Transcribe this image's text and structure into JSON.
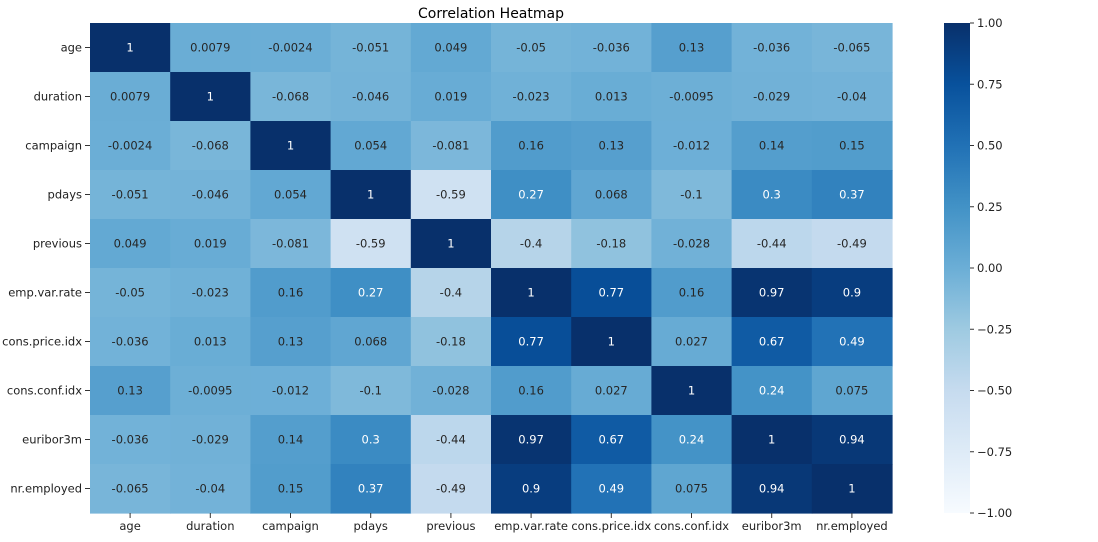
{
  "chart_data": {
    "type": "heatmap",
    "title": "Correlation Heatmap",
    "x_categories": [
      "age",
      "duration",
      "campaign",
      "pdays",
      "previous",
      "emp.var.rate",
      "cons.price.idx",
      "cons.conf.idx",
      "euribor3m",
      "nr.employed"
    ],
    "y_categories": [
      "age",
      "duration",
      "campaign",
      "pdays",
      "previous",
      "emp.var.rate",
      "cons.price.idx",
      "cons.conf.idx",
      "euribor3m",
      "nr.employed"
    ],
    "values": [
      [
        1,
        0.0079,
        -0.0024,
        -0.051,
        0.049,
        -0.05,
        -0.036,
        0.13,
        -0.036,
        -0.065
      ],
      [
        0.0079,
        1,
        -0.068,
        -0.046,
        0.019,
        -0.023,
        0.013,
        -0.0095,
        -0.029,
        -0.04
      ],
      [
        -0.0024,
        -0.068,
        1,
        0.054,
        -0.081,
        0.16,
        0.13,
        -0.012,
        0.14,
        0.15
      ],
      [
        -0.051,
        -0.046,
        0.054,
        1,
        -0.59,
        0.27,
        0.068,
        -0.1,
        0.3,
        0.37
      ],
      [
        0.049,
        0.019,
        -0.081,
        -0.59,
        1,
        -0.4,
        -0.18,
        -0.028,
        -0.44,
        -0.49
      ],
      [
        -0.05,
        -0.023,
        0.16,
        0.27,
        -0.4,
        1,
        0.77,
        0.16,
        0.97,
        0.9
      ],
      [
        -0.036,
        0.013,
        0.13,
        0.068,
        -0.18,
        0.77,
        1,
        0.027,
        0.67,
        0.49
      ],
      [
        0.13,
        -0.0095,
        -0.012,
        -0.1,
        -0.028,
        0.16,
        0.027,
        1,
        0.24,
        0.075
      ],
      [
        -0.036,
        -0.029,
        0.14,
        0.3,
        -0.44,
        0.97,
        0.67,
        0.24,
        1,
        0.94
      ],
      [
        -0.065,
        -0.04,
        0.15,
        0.37,
        -0.49,
        0.9,
        0.49,
        0.075,
        0.94,
        1
      ]
    ],
    "colormap": "Blues",
    "vmin": -1,
    "vmax": 1,
    "colorbar_ticks": [
      1.0,
      0.75,
      0.5,
      0.25,
      0.0,
      -0.25,
      -0.5,
      -0.75,
      -1.0
    ],
    "colorbar_tick_labels": [
      "1.00",
      "0.75",
      "0.50",
      "0.25",
      "0.00",
      "−0.25",
      "−0.50",
      "−0.75",
      "−1.00"
    ],
    "annotated": true,
    "grid": false
  }
}
